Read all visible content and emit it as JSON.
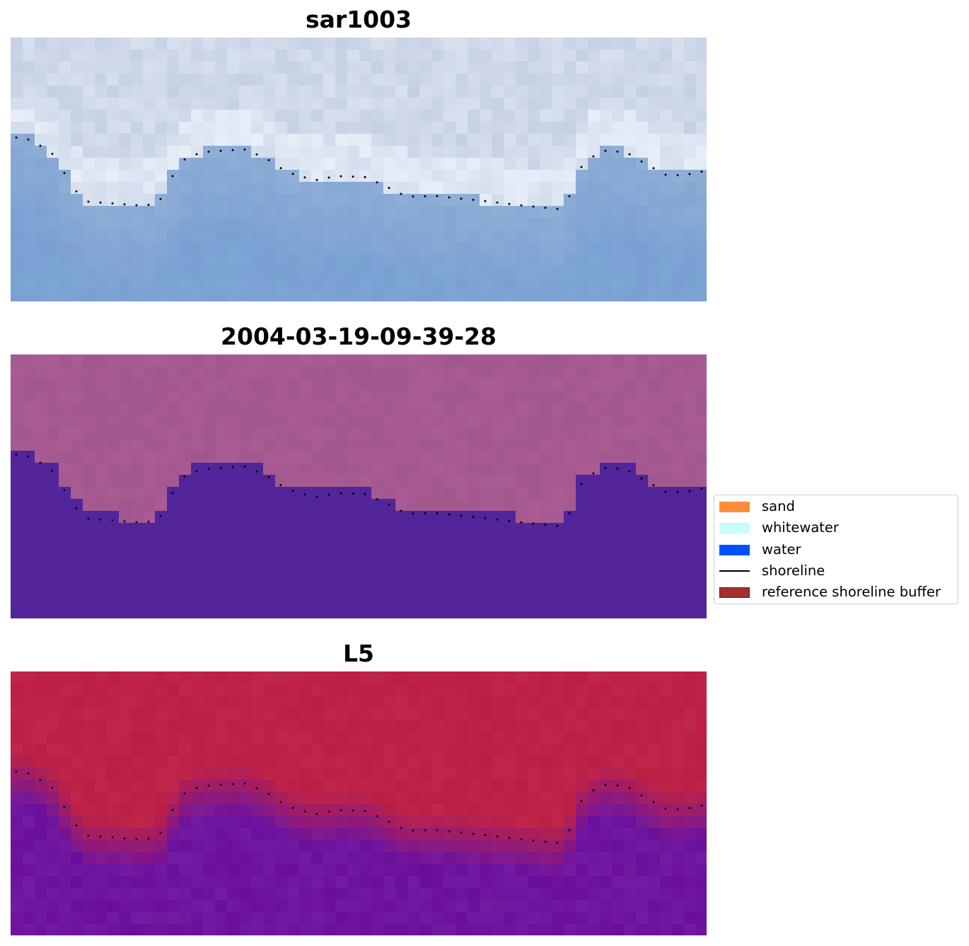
{
  "panels": [
    {
      "title": "sar1003",
      "style": "rgb"
    },
    {
      "title": "2004-03-19-09-39-28",
      "style": "classified"
    },
    {
      "title": "L5",
      "style": "probability"
    }
  ],
  "colors": {
    "sar_sky_base": "#b9c6dc",
    "sar_surf_white": "#e8eef8",
    "sar_water": "#7aa3d4",
    "class_land": "#a0578f",
    "class_water": "#52259a",
    "prob_land": "#c0254a",
    "prob_water": "#6a0f9c",
    "shoreline_dots": "#000000"
  },
  "legend": {
    "items": [
      {
        "label": "sand",
        "kind": "patch",
        "color": "#ff8c3b",
        "edge": "#ff8c3b"
      },
      {
        "label": "whitewater",
        "kind": "patch",
        "color": "#c8fcfb",
        "edge": "#c8fcfb"
      },
      {
        "label": "water",
        "kind": "patch",
        "color": "#0050ff",
        "edge": "#0050ff"
      },
      {
        "label": "shoreline",
        "kind": "line",
        "color": "#000000"
      },
      {
        "label": "reference shoreline buffer",
        "kind": "patch",
        "color": "#a3302c",
        "edge": "#7a1410"
      }
    ]
  }
}
